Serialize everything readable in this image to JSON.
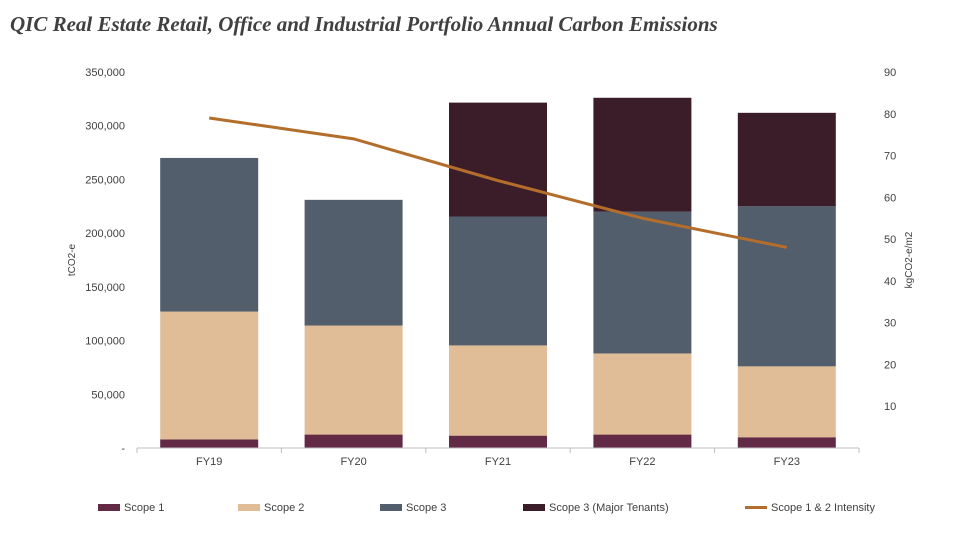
{
  "chart_data": {
    "type": "bar",
    "title": "QIC Real Estate Retail, Office and Industrial Portfolio Annual Carbon Emissions",
    "ylabel": "tCO2-e",
    "y2label": "kgCO2-e/m2",
    "ylim": [
      0,
      350000
    ],
    "y2lim": [
      0,
      90
    ],
    "yticks": [
      "-",
      "50,000",
      "100,000",
      "150,000",
      "200,000",
      "250,000",
      "300,000",
      "350,000"
    ],
    "y2ticks": [
      "10",
      "20",
      "30",
      "40",
      "50",
      "60",
      "70",
      "80",
      "90"
    ],
    "categories": [
      "FY19",
      "FY20",
      "FY21",
      "FY22",
      "FY23"
    ],
    "stacked": true,
    "series": [
      {
        "name": "Scope 1",
        "type": "bar",
        "color": "#632a45",
        "values": [
          8000,
          12500,
          11500,
          12500,
          10000
        ]
      },
      {
        "name": "Scope 2",
        "type": "bar",
        "color": "#e0bd96",
        "values": [
          119000,
          101500,
          84000,
          75500,
          66000
        ]
      },
      {
        "name": "Scope 3",
        "type": "bar",
        "color": "#525e6b",
        "values": [
          143000,
          117000,
          120000,
          132000,
          149000
        ]
      },
      {
        "name": "Scope 3 (Major Tenants)",
        "type": "bar",
        "color": "#3b1c29",
        "values": [
          0,
          0,
          106000,
          106000,
          87000
        ]
      },
      {
        "name": "Scope 1 & 2 Intensity",
        "type": "line",
        "axis": "secondary",
        "color": "#b46e2c",
        "values": [
          79,
          74,
          64,
          55,
          48
        ]
      }
    ],
    "legend_position": "bottom",
    "grid": false
  }
}
